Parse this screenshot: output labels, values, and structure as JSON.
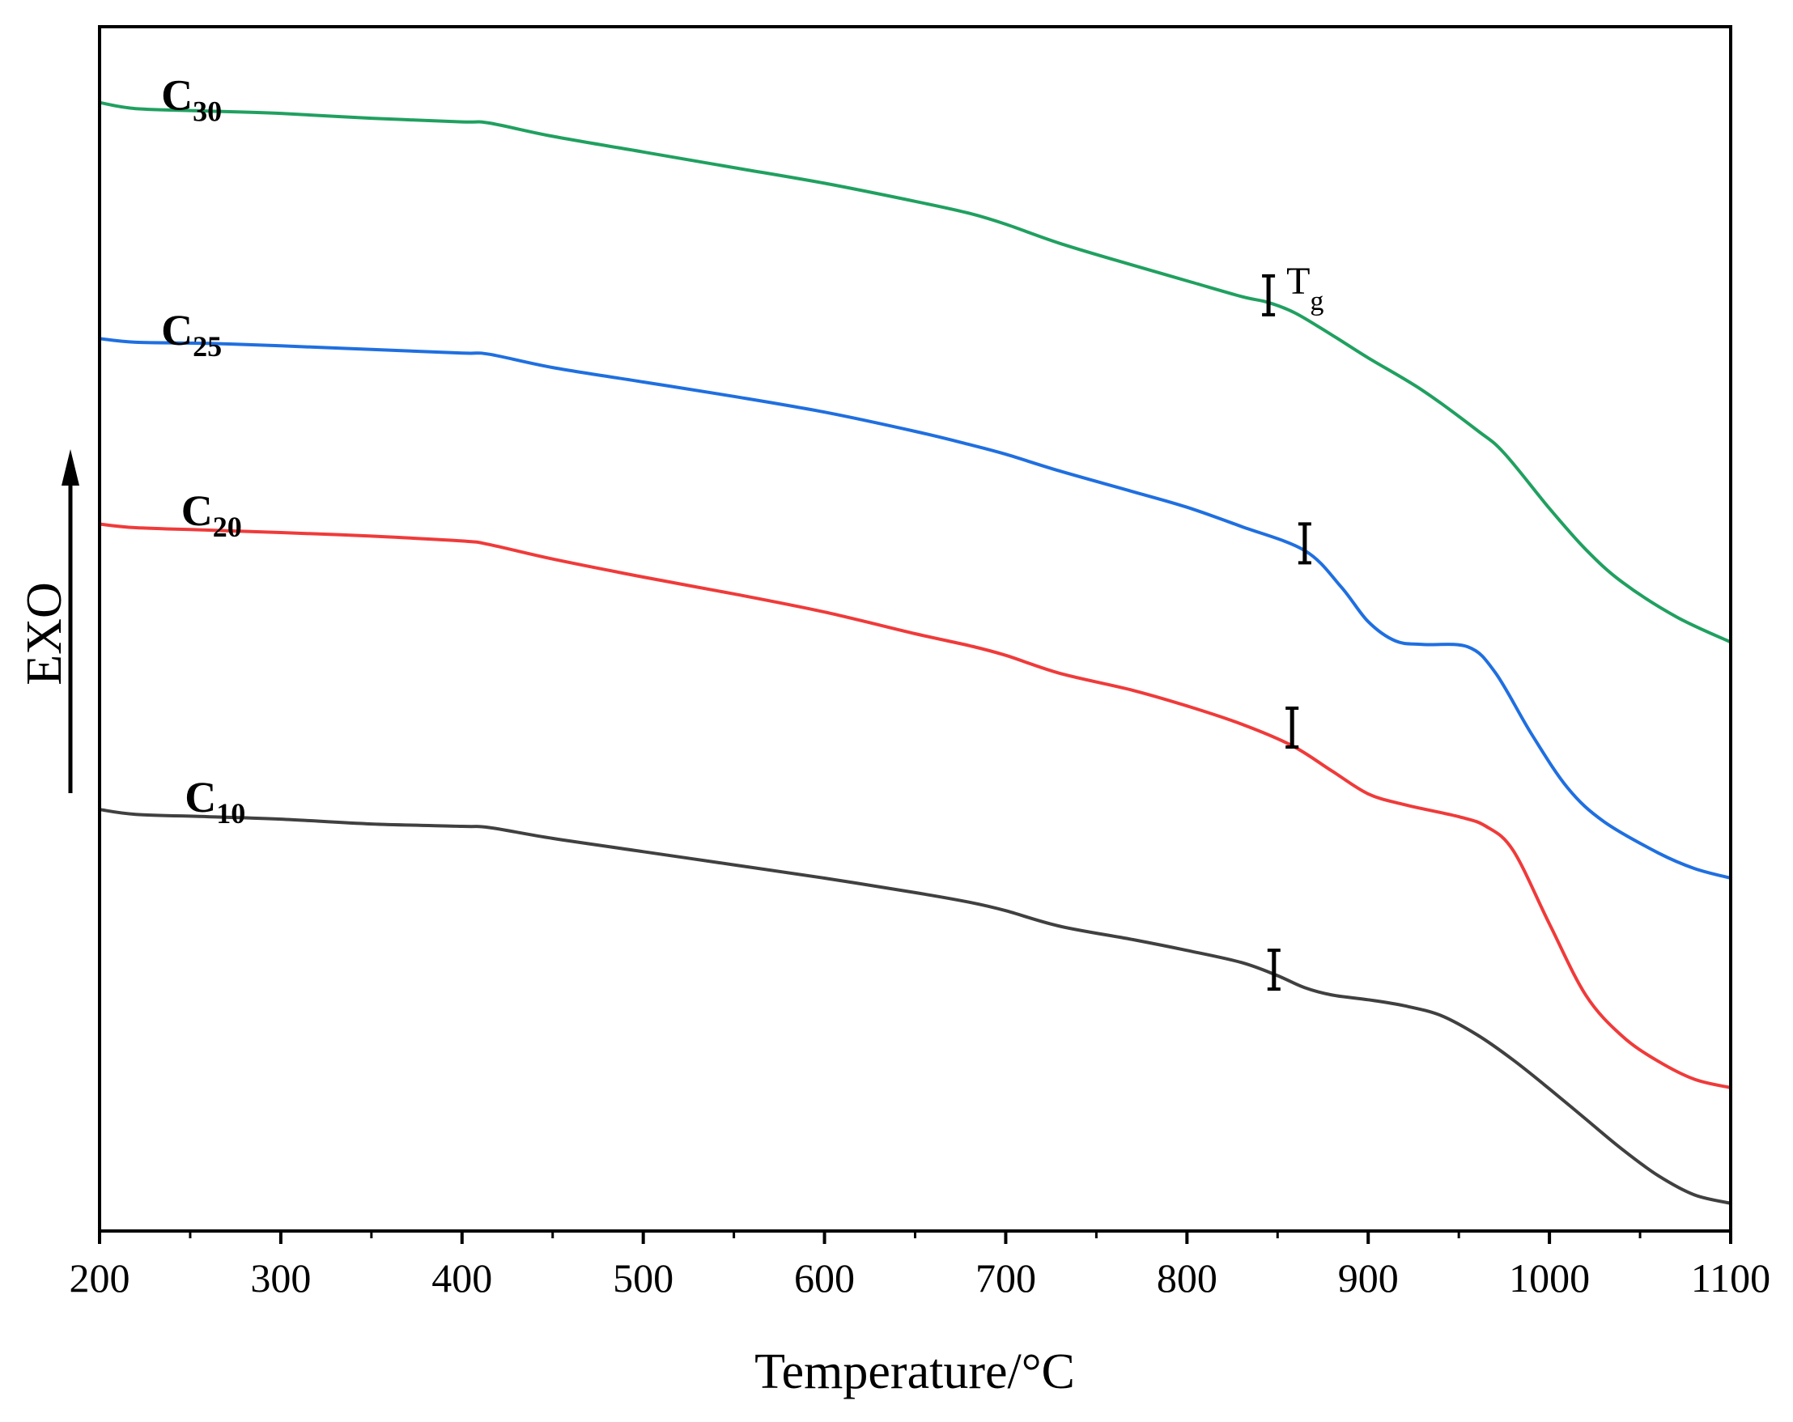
{
  "chart_data": {
    "type": "line",
    "title": "",
    "xlabel": "Temperature/°C",
    "ylabel": "EXO",
    "xlim": [
      200,
      1100
    ],
    "ylim": [
      0,
      100
    ],
    "xticks": [
      200,
      300,
      400,
      500,
      600,
      700,
      800,
      900,
      1000,
      1100
    ],
    "yticks_shown": false,
    "colors": {
      "axis": "#000000",
      "C10": "#404040",
      "C20": "#f03a3a",
      "C25": "#1f6fe0",
      "C30": "#20a060"
    },
    "series": [
      {
        "name": "C10",
        "label_main": "C",
        "label_sub": "10",
        "color": "#404040",
        "label_at": [
          247,
          34.8
        ],
        "x": [
          200,
          220,
          260,
          300,
          350,
          400,
          415,
          450,
          500,
          550,
          600,
          650,
          680,
          700,
          730,
          770,
          800,
          830,
          850,
          865,
          880,
          900,
          920,
          940,
          960,
          980,
          1000,
          1020,
          1040,
          1060,
          1080,
          1100
        ],
        "y": [
          35.0,
          34.6,
          34.4,
          34.2,
          33.8,
          33.6,
          33.5,
          32.6,
          31.5,
          30.4,
          29.3,
          28.1,
          27.3,
          26.6,
          25.3,
          24.2,
          23.3,
          22.3,
          21.2,
          20.2,
          19.6,
          19.2,
          18.7,
          17.9,
          16.3,
          14.2,
          11.8,
          9.3,
          6.8,
          4.6,
          3.0,
          2.3
        ],
        "tg": {
          "x": 848,
          "y": 21.7
        }
      },
      {
        "name": "C20",
        "label_main": "C",
        "label_sub": "20",
        "color": "#f03a3a",
        "label_at": [
          245,
          58.6
        ],
        "x": [
          200,
          220,
          260,
          300,
          350,
          400,
          415,
          450,
          500,
          550,
          600,
          650,
          680,
          700,
          730,
          770,
          800,
          830,
          858,
          880,
          900,
          920,
          950,
          965,
          980,
          1000,
          1020,
          1040,
          1060,
          1080,
          1100
        ],
        "y": [
          58.7,
          58.4,
          58.2,
          58.0,
          57.7,
          57.3,
          57.0,
          55.8,
          54.3,
          52.9,
          51.4,
          49.6,
          48.6,
          47.8,
          46.3,
          44.9,
          43.6,
          42.1,
          40.3,
          38.2,
          36.3,
          35.4,
          34.4,
          33.6,
          31.6,
          25.5,
          19.6,
          16.2,
          14.1,
          12.6,
          11.9
        ],
        "tg": {
          "x": 858,
          "y": 41.8
        }
      },
      {
        "name": "C25",
        "label_main": "C",
        "label_sub": "25",
        "color": "#1f6fe0",
        "label_at": [
          234,
          73.6
        ],
        "x": [
          200,
          220,
          260,
          300,
          350,
          400,
          415,
          450,
          500,
          550,
          600,
          650,
          680,
          700,
          730,
          770,
          800,
          830,
          865,
          885,
          900,
          915,
          930,
          955,
          970,
          990,
          1010,
          1030,
          1060,
          1080,
          1100
        ],
        "y": [
          74.1,
          73.8,
          73.7,
          73.5,
          73.2,
          72.9,
          72.8,
          71.7,
          70.5,
          69.3,
          68.0,
          66.4,
          65.3,
          64.5,
          63.1,
          61.4,
          60.1,
          58.5,
          56.5,
          53.5,
          50.6,
          49.0,
          48.7,
          48.5,
          46.4,
          41.3,
          36.8,
          34.0,
          31.4,
          30.1,
          29.3
        ],
        "tg": {
          "x": 865,
          "y": 57.1
        }
      },
      {
        "name": "C30",
        "label_main": "C",
        "label_sub": "30",
        "color": "#20a060",
        "label_at": [
          234,
          93.1
        ],
        "x": [
          200,
          220,
          260,
          300,
          350,
          400,
          415,
          450,
          500,
          550,
          600,
          650,
          680,
          700,
          730,
          770,
          800,
          830,
          845,
          860,
          880,
          900,
          930,
          960,
          975,
          1000,
          1020,
          1040,
          1070,
          1100
        ],
        "y": [
          93.7,
          93.2,
          93.0,
          92.8,
          92.4,
          92.1,
          92.0,
          90.9,
          89.6,
          88.3,
          87.0,
          85.5,
          84.5,
          83.6,
          82.0,
          80.2,
          78.9,
          77.6,
          77.1,
          76.2,
          74.4,
          72.5,
          69.8,
          66.5,
          64.6,
          60.0,
          56.6,
          53.9,
          51.0,
          48.9
        ],
        "tg": {
          "x": 845,
          "y": 77.7
        }
      }
    ],
    "annotations": [
      {
        "text_main": "T",
        "text_sub": "g",
        "series": "C30"
      }
    ],
    "exo_arrow": {
      "direction": "up"
    }
  }
}
